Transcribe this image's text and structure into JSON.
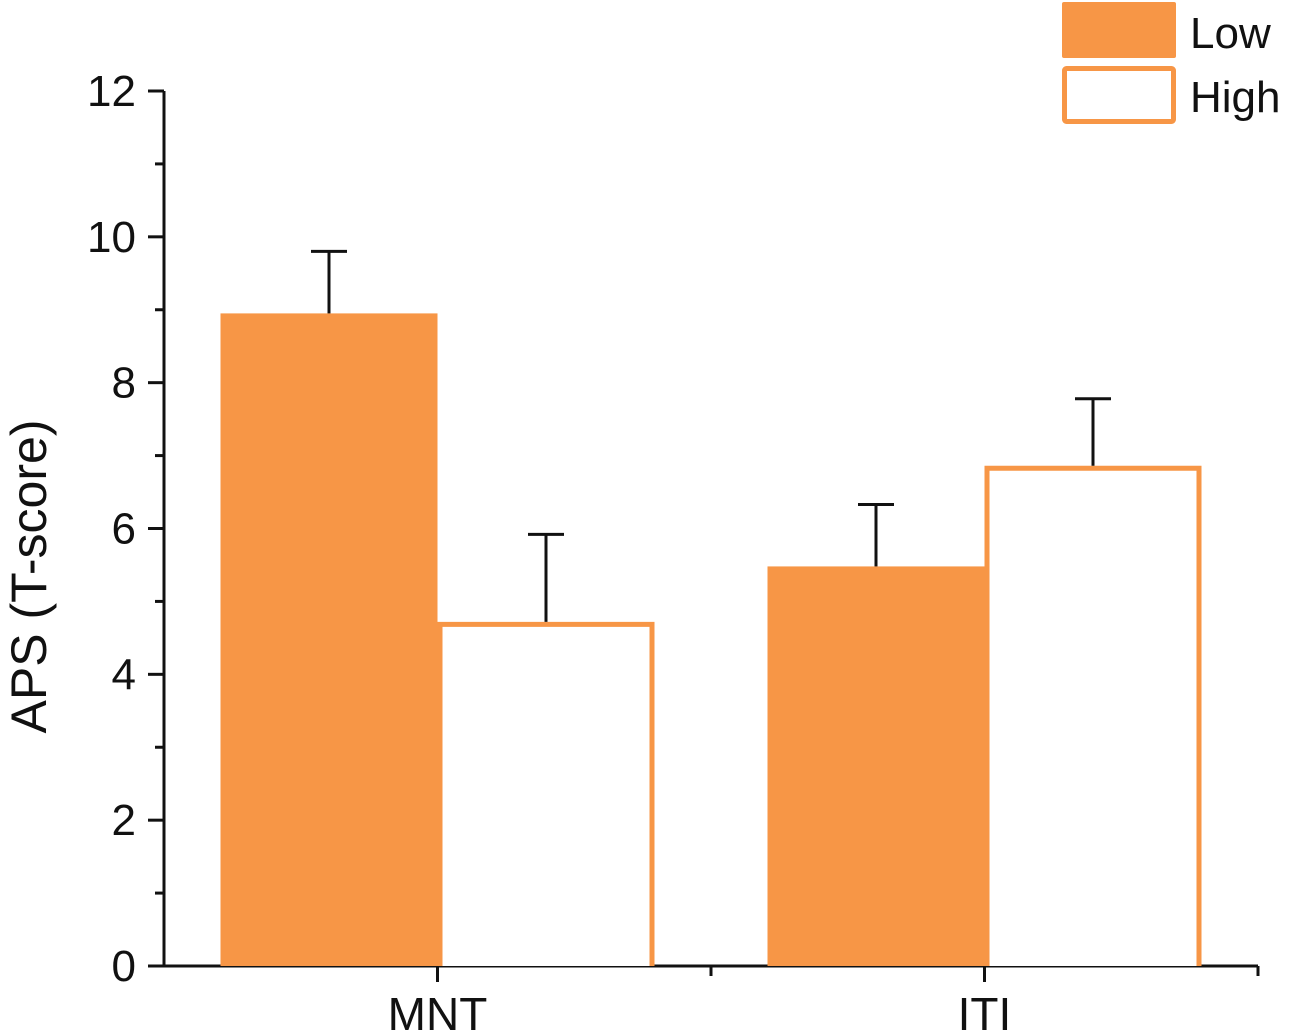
{
  "chart_data": {
    "type": "bar",
    "ylabel": "APS (T-score)",
    "xlabel": "",
    "categories": [
      "MNT",
      "ITI"
    ],
    "ylim": [
      0,
      12
    ],
    "yticks": [
      "0",
      "2",
      "4",
      "6",
      "8",
      "10",
      "12"
    ],
    "series": [
      {
        "name": "Low",
        "values": [
          8.95,
          5.48
        ],
        "errors": [
          0.85,
          0.85
        ],
        "fill": "#F79646",
        "stroke": "#F79646"
      },
      {
        "name": "High",
        "values": [
          4.72,
          6.86
        ],
        "errors": [
          1.2,
          0.92
        ],
        "fill": "#FFFFFF",
        "stroke": "#F79646"
      }
    ],
    "legend_position": "top-right",
    "grid": false
  }
}
